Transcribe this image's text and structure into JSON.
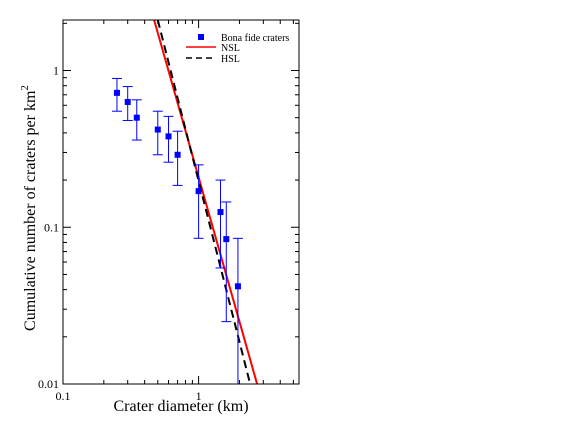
{
  "chart_data": {
    "type": "scatter",
    "title": "",
    "xlabel": "Crater diameter (km)",
    "ylabel_main": "Cumulative number of craters per km",
    "ylabel_sup": "2",
    "x_scale": "log",
    "y_scale": "log",
    "xlim": [
      0.1,
      5.5
    ],
    "ylim": [
      0.01,
      2.1
    ],
    "x_ticks": [
      {
        "value": 0.1,
        "label": "0.1"
      },
      {
        "value": 1,
        "label": "1"
      }
    ],
    "y_ticks": [
      {
        "value": 0.01,
        "label": "0.01"
      },
      {
        "value": 0.1,
        "label": "0.1"
      },
      {
        "value": 1,
        "label": "1"
      }
    ],
    "grid": false,
    "legend_position": "top-right",
    "series": [
      {
        "name": "Bona fide craters",
        "kind": "points_with_error_bars",
        "color": "#0000ff",
        "points": [
          {
            "x": 0.25,
            "y": 0.72,
            "y_low": 0.55,
            "y_high": 0.89
          },
          {
            "x": 0.3,
            "y": 0.63,
            "y_low": 0.48,
            "y_high": 0.79
          },
          {
            "x": 0.35,
            "y": 0.5,
            "y_low": 0.36,
            "y_high": 0.65
          },
          {
            "x": 0.5,
            "y": 0.42,
            "y_low": 0.29,
            "y_high": 0.55
          },
          {
            "x": 0.6,
            "y": 0.38,
            "y_low": 0.26,
            "y_high": 0.51
          },
          {
            "x": 0.7,
            "y": 0.29,
            "y_low": 0.185,
            "y_high": 0.41
          },
          {
            "x": 1.0,
            "y": 0.17,
            "y_low": 0.085,
            "y_high": 0.25
          },
          {
            "x": 1.45,
            "y": 0.125,
            "y_low": 0.055,
            "y_high": 0.2
          },
          {
            "x": 1.6,
            "y": 0.084,
            "y_low": 0.025,
            "y_high": 0.145
          },
          {
            "x": 1.95,
            "y": 0.042,
            "y_low": 0.01,
            "y_high": 0.085
          }
        ]
      },
      {
        "name": "NSL",
        "kind": "line",
        "color": "#ff0000",
        "dash": "solid",
        "x": [
          0.47,
          2.7
        ],
        "y": [
          2.1,
          0.01
        ]
      },
      {
        "name": "HSL",
        "kind": "line",
        "color": "#000000",
        "dash": "dashed",
        "x": [
          0.5,
          2.4
        ],
        "y": [
          2.1,
          0.01
        ]
      }
    ]
  }
}
